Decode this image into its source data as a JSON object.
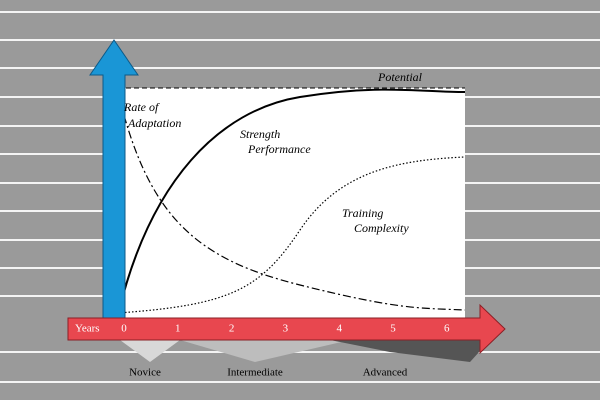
{
  "curves": {
    "potential": "Potential",
    "rate_of_adaptation": [
      "Rate of",
      "Adaptation"
    ],
    "strength_performance": [
      "Strength",
      "Performance"
    ],
    "training_complexity": [
      "Training",
      "Complexity"
    ]
  },
  "axis": {
    "title": "Years",
    "ticks": [
      "0",
      "1",
      "2",
      "3",
      "4",
      "5",
      "6"
    ]
  },
  "stages": [
    "Novice",
    "Intermediate",
    "Advanced"
  ]
}
